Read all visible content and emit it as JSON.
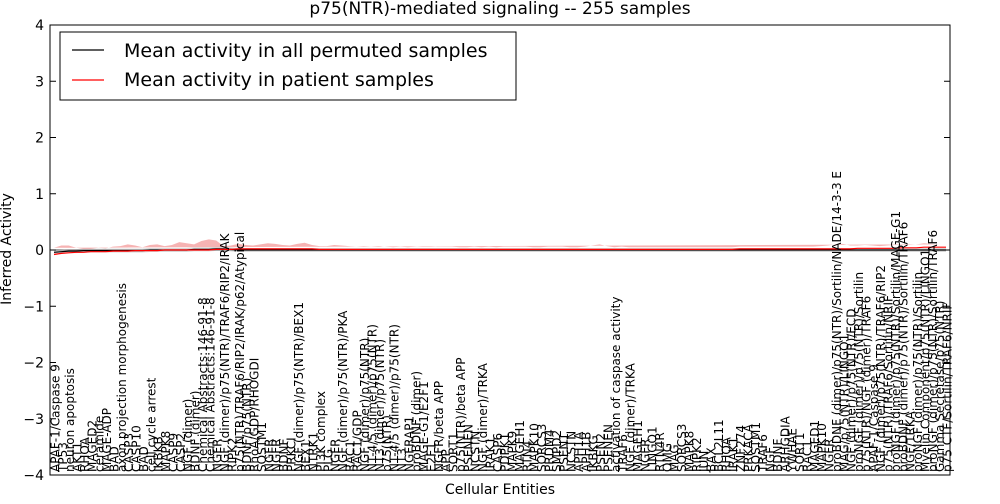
{
  "chart_data": {
    "type": "line",
    "title": "p75(NTR)-mediated signaling -- 255 samples",
    "xlabel": "Cellular Entities",
    "ylabel": "Inferred Activity",
    "ylim": [
      -4,
      4
    ],
    "yticks": [
      -4,
      -3,
      -2,
      -1,
      0,
      1,
      2,
      3,
      4
    ],
    "ytick_labels": [
      "−4",
      "−3",
      "−2",
      "−1",
      "0",
      "1",
      "2",
      "3",
      "4"
    ],
    "grid": false,
    "legend_position": "top-left",
    "legend": [
      {
        "label": "Mean activity in all permuted samples",
        "color": "#000000"
      },
      {
        "label": "Mean activity in patient samples",
        "color": "#ff0000"
      }
    ],
    "colors": {
      "permuted": "#000000",
      "patient": "#ff0000",
      "patient_band": "#f08080",
      "permuted_band": "#b0b0b0"
    },
    "x_tick_labels": [
      "APAF-1/Caspase 9",
      "TP53",
      "neuron apoptosis",
      "AKT1",
      "RHOA",
      "MAGED2",
      "ceramide",
      "MAGE-ADP",
      "BAD",
      "axon projection morphogenesis",
      "CASP3",
      "CASP10",
      "BAD",
      "cell cycle arrest",
      "IKBKB",
      "MAPK8",
      "CASP9",
      "CASP2",
      "NGF (dimer)",
      "BDNF (dimer)",
      "Chemical Abstracts:146-91-8",
      "Chemical Abstracts:146-91-8",
      "NGFR",
      "NGF (dimer)/p75(NTR)/TRAF6/RIP2/IRAK",
      "RIPK2",
      "p75(NTR)/TRAF6/RIP2/IRAK/p62/Atypical",
      "BDNF/p75(NTR)",
      "RhoA/GDP/RHOGDI",
      "SQSTM1",
      "NGFR",
      "NGFR",
      "BDNF",
      "PRKCI",
      "NGF (dimer)/p75(NTR)/BEX1",
      "BEX1",
      "NTRK1",
      "PI3K complex",
      "PLG",
      "NGFR",
      "NGF (dimer)/p75(NTR)/PKA",
      "RAC1",
      "RAC1/GDP",
      "NGF (dimer)/p75(NTR)",
      "NT-4/5 (dimer)/p75(NTR)",
      "NT3 (dimer)/p75(NTR)",
      "p75(NTR)",
      "NT-4/5 (dimer)/p75(NTR)",
      "NT3",
      "NGFRAP1",
      "proBDNF (dimer)",
      "MAGE-G1/E2F1",
      "E2F1",
      "NGFR/beta APP",
      "APP",
      "SORT1",
      "p75(NTR)/beta APP",
      "PSENEN",
      "NCSTN",
      "NGF (dimer)/TRKA",
      "IRAK1",
      "CASP6",
      "PDPK1",
      "MAPK9",
      "MAGEH1",
      "RTN4",
      "MAPK10",
      "SORCS3",
      "PRDM4",
      "SMPD2",
      "PSEN1",
      "NCSTN",
      "APH1A",
      "APH1B",
      "IKBKG",
      "PSEN2",
      "PSENEN",
      "activation of caspase activity",
      "TRAF6",
      "NGF (dimer)/TRKA",
      "MAGEH1",
      "NGFR",
      "LINGO1",
      "RTN4R",
      "OMG",
      "MAG",
      "SORCS3",
      "MAPK8",
      "RIPK2",
      "JUN",
      "BAX",
      "BCL2L11",
      "RHOA",
      "IRAK1",
      "ZNF274",
      "PRKACA",
      "SQSTM1",
      "TRAF6",
      "NGF",
      "BDNF",
      "ARHGDIA",
      "YWHAE",
      "SORT1",
      "RAC1",
      "MAGED1",
      "MAPK10",
      "NGFR",
      "proBDNF (dimer)/p75(NTR)/Sortilin/NADE/14-3-3 E",
      "MAG/p75(NTR)/LINGO1",
      "NGF (dimer)/p75(NTR)/ECD",
      "proNGF (dimer)/p75(NTR)/Sortilin",
      "p75(NTR)/NGF (dimer)/TRAF6",
      "APAF-1/Caspase 9",
      "NGF (dimer)/p75(NTR)/TRAF6/RIP2",
      "p75(NTR)/TRAF6/Sortilin/NRIF",
      "proNGF (dimer)/p75(NTR)/Sortilin/MAGE-G1",
      "proBDNF (dimer)/p75(NTR)/Sortilin/TRAF6",
      "NGF/TRKA",
      "proNGF (dimer)/p75(NTR)/Sortilin",
      "Myelin Component/p75(NTR)/LINGO1",
      "proNGF (dimer)/p75(NTR)/Sortilin/TRAF6",
      "Gamma Secretase/p75(NTR)",
      "p75 CTF/Sortilin/TRAF6/NRIF"
    ],
    "series": [
      {
        "name": "Mean activity in all permuted samples",
        "values": [
          -0.04,
          -0.03,
          -0.02,
          -0.02,
          -0.01,
          -0.01,
          -0.01,
          -0.01,
          -0.01,
          -0.01,
          -0.01,
          -0.01,
          -0.01,
          0.0,
          0.0,
          0.0,
          0.0,
          0.0,
          0.0,
          0.01,
          0.01,
          0.01,
          0.02,
          0.02,
          0.01,
          0.0,
          0.0,
          0.0,
          0.0,
          0.0,
          0.0,
          0.0,
          0.0,
          0.0,
          0.0,
          0.0,
          0.0,
          0.0,
          0.0,
          0.0,
          0.0,
          0.0,
          0.0,
          0.0,
          0.0,
          0.0,
          0.0,
          0.0,
          0.0,
          0.0,
          0.0,
          0.0,
          0.0,
          0.0,
          0.0,
          0.0,
          0.0,
          0.0,
          0.0,
          0.0,
          0.0,
          0.0,
          0.0,
          0.0,
          0.0,
          0.0,
          0.0,
          0.0,
          0.0,
          0.0,
          0.0,
          0.0,
          0.0,
          0.0,
          0.0,
          0.0,
          0.0,
          0.0,
          0.0,
          0.0,
          0.0,
          0.0,
          0.0,
          0.0,
          0.0,
          0.0,
          0.0,
          0.0,
          0.0,
          0.0,
          0.0,
          0.0,
          0.0,
          0.0,
          0.0,
          0.0,
          0.0,
          0.0,
          0.0,
          0.0,
          0.0,
          0.0,
          0.0,
          0.0,
          0.0,
          0.0,
          0.0,
          0.0,
          0.0,
          0.0,
          0.0,
          0.0,
          0.0,
          0.0,
          0.0,
          0.0,
          0.0,
          0.0,
          0.0,
          0.0,
          0.0,
          0.0
        ]
      },
      {
        "name": "Mean activity in patient samples",
        "values": [
          -0.08,
          -0.06,
          -0.05,
          -0.04,
          -0.04,
          -0.03,
          -0.03,
          -0.03,
          -0.02,
          -0.02,
          -0.02,
          -0.01,
          -0.01,
          -0.01,
          -0.01,
          0.0,
          0.0,
          0.0,
          0.0,
          0.0,
          0.0,
          0.0,
          0.01,
          0.01,
          0.01,
          0.02,
          0.02,
          0.02,
          0.02,
          0.02,
          0.02,
          0.02,
          0.02,
          0.02,
          0.02,
          0.02,
          0.01,
          0.01,
          0.01,
          0.01,
          0.01,
          0.01,
          0.01,
          0.01,
          0.01,
          0.01,
          0.01,
          0.01,
          0.01,
          0.01,
          0.01,
          0.01,
          0.01,
          0.01,
          0.01,
          0.01,
          0.01,
          0.01,
          0.01,
          0.01,
          0.01,
          0.01,
          0.01,
          0.01,
          0.01,
          0.01,
          0.01,
          0.01,
          0.01,
          0.01,
          0.01,
          0.01,
          0.01,
          0.01,
          0.01,
          0.01,
          0.01,
          0.01,
          0.01,
          0.01,
          0.01,
          0.01,
          0.01,
          0.01,
          0.01,
          0.01,
          0.01,
          0.01,
          0.01,
          0.01,
          0.01,
          0.01,
          0.01,
          0.02,
          0.02,
          0.02,
          0.02,
          0.02,
          0.02,
          0.02,
          0.02,
          0.02,
          0.02,
          0.02,
          0.02,
          0.02,
          0.02,
          0.02,
          0.02,
          0.03,
          0.03,
          0.03,
          0.03,
          0.03,
          0.03,
          0.04,
          0.04,
          0.04,
          0.05,
          0.05,
          0.05,
          0.05
        ]
      },
      {
        "name": "patient band half-width",
        "values": [
          0.12,
          0.14,
          0.13,
          0.08,
          0.06,
          0.05,
          0.07,
          0.06,
          0.08,
          0.09,
          0.12,
          0.09,
          0.06,
          0.1,
          0.11,
          0.07,
          0.09,
          0.14,
          0.12,
          0.1,
          0.16,
          0.19,
          0.16,
          0.06,
          0.07,
          0.09,
          0.07,
          0.06,
          0.08,
          0.1,
          0.09,
          0.07,
          0.06,
          0.09,
          0.11,
          0.07,
          0.06,
          0.06,
          0.08,
          0.07,
          0.06,
          0.05,
          0.06,
          0.05,
          0.06,
          0.05,
          0.04,
          0.05,
          0.04,
          0.05,
          0.06,
          0.06,
          0.05,
          0.05,
          0.05,
          0.04,
          0.04,
          0.05,
          0.04,
          0.05,
          0.04,
          0.05,
          0.05,
          0.05,
          0.05,
          0.04,
          0.04,
          0.05,
          0.05,
          0.05,
          0.04,
          0.04,
          0.05,
          0.07,
          0.09,
          0.06,
          0.04,
          0.05,
          0.04,
          0.04,
          0.04,
          0.04,
          0.04,
          0.04,
          0.04,
          0.04,
          0.04,
          0.04,
          0.04,
          0.04,
          0.04,
          0.04,
          0.04,
          0.04,
          0.04,
          0.04,
          0.04,
          0.04,
          0.04,
          0.04,
          0.04,
          0.04,
          0.04,
          0.04,
          0.05,
          0.06,
          0.08,
          0.09,
          0.06,
          0.05,
          0.06,
          0.05,
          0.04,
          0.05,
          0.06,
          0.05,
          0.05,
          0.06,
          0.07,
          0.06,
          0.05
        ]
      }
    ]
  }
}
